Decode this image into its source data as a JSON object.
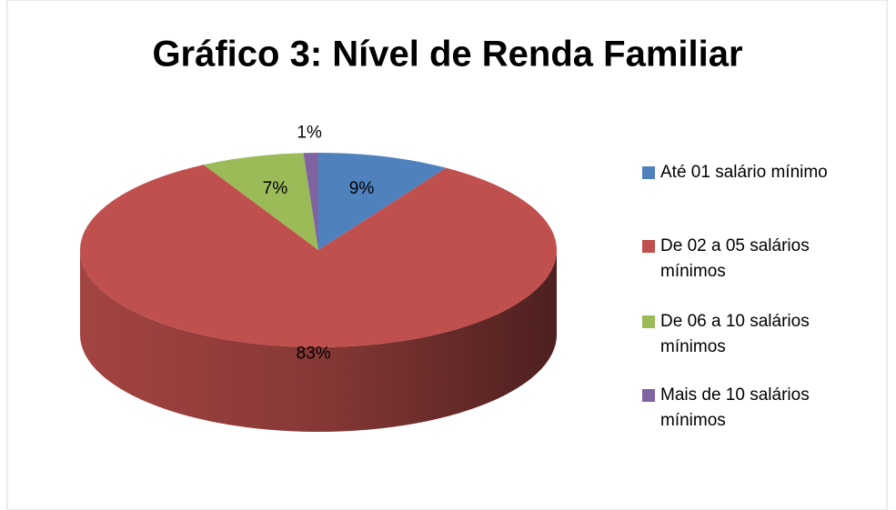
{
  "chart_data": {
    "type": "pie",
    "title": "Gráfico 3: Nível de Renda Familiar",
    "categories": [
      "Até 01 salário mínimo",
      "De 02 a 05 salários mínimos",
      "De 06 a 10 salários mínimos",
      "Mais de 10 salários mínimos"
    ],
    "values": [
      9,
      83,
      7,
      1
    ],
    "value_labels": [
      "9%",
      "83%",
      "7%",
      "1%"
    ],
    "colors": [
      "#4f81bd",
      "#c0504d",
      "#9bbb59",
      "#8064a2"
    ],
    "legend": "right"
  }
}
